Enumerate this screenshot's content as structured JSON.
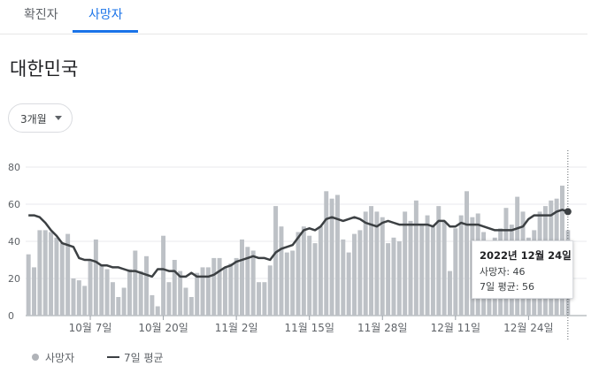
{
  "tabs": [
    {
      "label": "확진자"
    },
    {
      "label": "사망자"
    }
  ],
  "region_title": "대한민국",
  "range_selector": {
    "label": "3개월",
    "icon": "caret-down-icon"
  },
  "legend": {
    "bars_label": "사망자",
    "line_label": "7일 평균"
  },
  "tooltip": {
    "date": "2022년 12월 24일",
    "row1": "사망자: 46",
    "row2": "7일 평균: 56"
  },
  "colors": {
    "bar": "#bdc1c6",
    "line": "#3c4043",
    "accent": "#1a73e8"
  },
  "chart_data": {
    "type": "bar",
    "title": "",
    "xlabel": "",
    "ylabel": "",
    "ylim": [
      0,
      85
    ],
    "yticks": [
      0,
      20,
      40,
      60,
      80
    ],
    "x_start_date": "2022-09-26",
    "x_end_date": "2022-12-24",
    "xtick_labels": [
      "10월 7일",
      "10월 20일",
      "11월 2일",
      "11월 15일",
      "11월 28일",
      "12월 11일",
      "12월 24일"
    ],
    "series": [
      {
        "name": "사망자",
        "values": [
          33,
          26,
          46,
          46,
          45,
          42,
          39,
          44,
          20,
          19,
          16,
          30,
          41,
          27,
          25,
          18,
          10,
          15,
          25,
          35,
          24,
          32,
          11,
          5,
          43,
          18,
          30,
          24,
          15,
          10,
          23,
          26,
          26,
          31,
          31,
          26,
          28,
          31,
          41,
          37,
          35,
          18,
          18,
          27,
          59,
          48,
          34,
          35,
          45,
          48,
          43,
          39,
          48,
          67,
          63,
          65,
          41,
          34,
          44,
          46,
          56,
          59,
          56,
          53,
          39,
          42,
          40,
          56,
          51,
          62,
          49,
          54,
          48,
          59,
          51,
          24,
          47,
          54,
          67,
          53,
          55,
          45,
          39,
          42,
          47,
          58,
          49,
          64,
          56,
          42,
          46,
          56,
          59,
          62,
          63,
          70,
          46
        ]
      },
      {
        "name": "7일 평균",
        "values": [
          54,
          54,
          53,
          50,
          46,
          43,
          39,
          38,
          37,
          31,
          30,
          30,
          29,
          27,
          27,
          26,
          26,
          25,
          24,
          24,
          23,
          22,
          21,
          25,
          25,
          24,
          24,
          21,
          21,
          23,
          21,
          21,
          21,
          22,
          24,
          26,
          27,
          29,
          30,
          31,
          32,
          31,
          31,
          30,
          34,
          36,
          37,
          38,
          42,
          46,
          47,
          46,
          48,
          52,
          53,
          52,
          51,
          52,
          53,
          52,
          50,
          49,
          48,
          50,
          51,
          50,
          49,
          49,
          49,
          49,
          49,
          49,
          48,
          51,
          51,
          48,
          48,
          50,
          49,
          49,
          49,
          48,
          47,
          46,
          46,
          46,
          46,
          47,
          48,
          52,
          54,
          54,
          54,
          54,
          56,
          57,
          56
        ]
      }
    ]
  }
}
